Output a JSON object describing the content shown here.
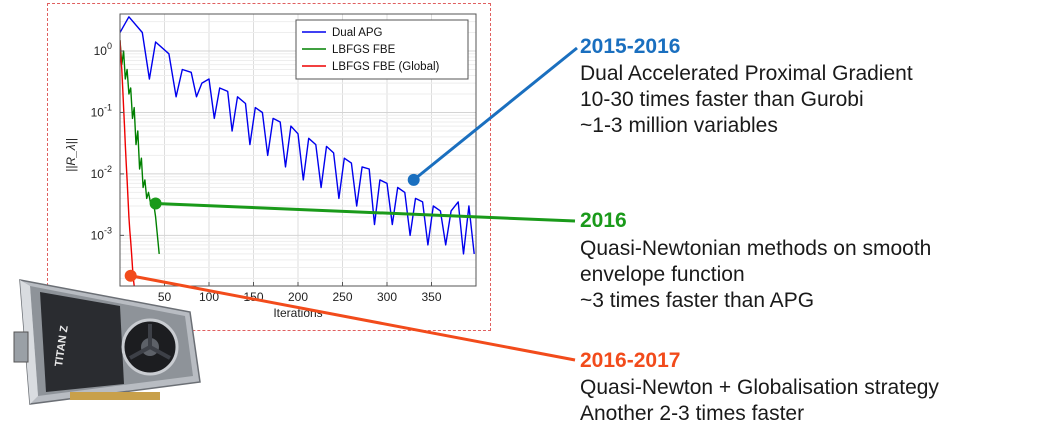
{
  "chart_data": {
    "type": "line",
    "title": "",
    "xlabel": "Iterations",
    "ylabel": "||R_λ||",
    "xlim": [
      0,
      400
    ],
    "ylim": [
      0.00015,
      4
    ],
    "yscale": "log",
    "grid": true,
    "legend_position": "top-right",
    "x_ticks": [
      "50",
      "100",
      "150",
      "200",
      "250",
      "300",
      "350"
    ],
    "y_ticks": [
      {
        "base": "10",
        "exp": "0"
      },
      {
        "base": "10",
        "exp": "-1"
      },
      {
        "base": "10",
        "exp": "-2"
      },
      {
        "base": "10",
        "exp": "-3"
      }
    ],
    "series": [
      {
        "name": "Dual APG",
        "color": "#0000ee",
        "x": [
          0,
          10,
          25,
          33,
          40,
          55,
          63,
          70,
          80,
          86,
          92,
          100,
          106,
          112,
          121,
          126,
          132,
          141,
          146,
          152,
          160,
          166,
          172,
          180,
          186,
          192,
          200,
          206,
          212,
          220,
          226,
          232,
          240,
          246,
          252,
          260,
          266,
          272,
          280,
          286,
          292,
          300,
          306,
          312,
          320,
          326,
          332,
          340,
          346,
          352,
          360,
          366,
          372,
          380,
          386,
          392,
          398
        ],
        "y": [
          2.0,
          3.6,
          2.0,
          0.35,
          1.4,
          0.9,
          0.18,
          0.5,
          0.45,
          0.18,
          0.3,
          0.35,
          0.08,
          0.25,
          0.22,
          0.05,
          0.18,
          0.14,
          0.03,
          0.12,
          0.1,
          0.02,
          0.08,
          0.07,
          0.013,
          0.06,
          0.045,
          0.008,
          0.038,
          0.03,
          0.006,
          0.028,
          0.022,
          0.004,
          0.018,
          0.015,
          0.003,
          0.013,
          0.012,
          0.0015,
          0.008,
          0.007,
          0.0015,
          0.006,
          0.005,
          0.001,
          0.004,
          0.0035,
          0.0007,
          0.003,
          0.0025,
          0.0007,
          0.0025,
          0.0035,
          0.0005,
          0.003,
          0.0005
        ]
      },
      {
        "name": "LBFGS FBE",
        "color": "#008000",
        "x": [
          0,
          2,
          4,
          6,
          8,
          10,
          12,
          14,
          16,
          18,
          20,
          22,
          24,
          26,
          28,
          30,
          32,
          34,
          36,
          38,
          40,
          42,
          44
        ],
        "y": [
          1.5,
          0.6,
          1.0,
          0.35,
          0.5,
          0.2,
          0.25,
          0.08,
          0.12,
          0.03,
          0.05,
          0.012,
          0.018,
          0.006,
          0.008,
          0.004,
          0.005,
          0.0035,
          0.003,
          0.0032,
          0.002,
          0.001,
          0.0005
        ]
      },
      {
        "name": "LBFGS FBE (Global)",
        "color": "#ee0000",
        "x": [
          0,
          1,
          2,
          3,
          4,
          5,
          6,
          7,
          8,
          9,
          10,
          11,
          12,
          13,
          14,
          15,
          16
        ],
        "y": [
          1.5,
          0.8,
          0.5,
          0.25,
          0.12,
          0.06,
          0.03,
          0.015,
          0.008,
          0.004,
          0.002,
          0.0012,
          0.0008,
          0.0005,
          0.0003,
          0.0002,
          0.00015
        ]
      }
    ],
    "markers": [
      {
        "series": "Dual APG",
        "x": 330,
        "y": 0.008,
        "color": "#1a6fbf"
      },
      {
        "series": "LBFGS FBE",
        "x": 40,
        "y": 0.0033,
        "color": "#1a9a1a"
      },
      {
        "series": "LBFGS FBE (Global)",
        "x": 12,
        "y": 0.00022,
        "color": "#f24b1b"
      }
    ]
  },
  "annotations": [
    {
      "header": "2015-2016",
      "color": "#1a6fbf",
      "lines": [
        "Dual Accelerated Proximal Gradient",
        "10-30 times faster than Gurobi",
        "~1-3 million variables"
      ]
    },
    {
      "header": "2016",
      "color": "#1a9a1a",
      "lines": [
        "Quasi-Newtonian methods on smooth",
        "envelope function",
        "~3 times faster than APG"
      ]
    },
    {
      "header": "2016-2017",
      "color": "#f24b1b",
      "lines": [
        "Quasi-Newton + Globalisation strategy",
        "Another 2-3 times faster"
      ]
    }
  ],
  "gpu_card": {
    "label": "TITAN Z"
  }
}
